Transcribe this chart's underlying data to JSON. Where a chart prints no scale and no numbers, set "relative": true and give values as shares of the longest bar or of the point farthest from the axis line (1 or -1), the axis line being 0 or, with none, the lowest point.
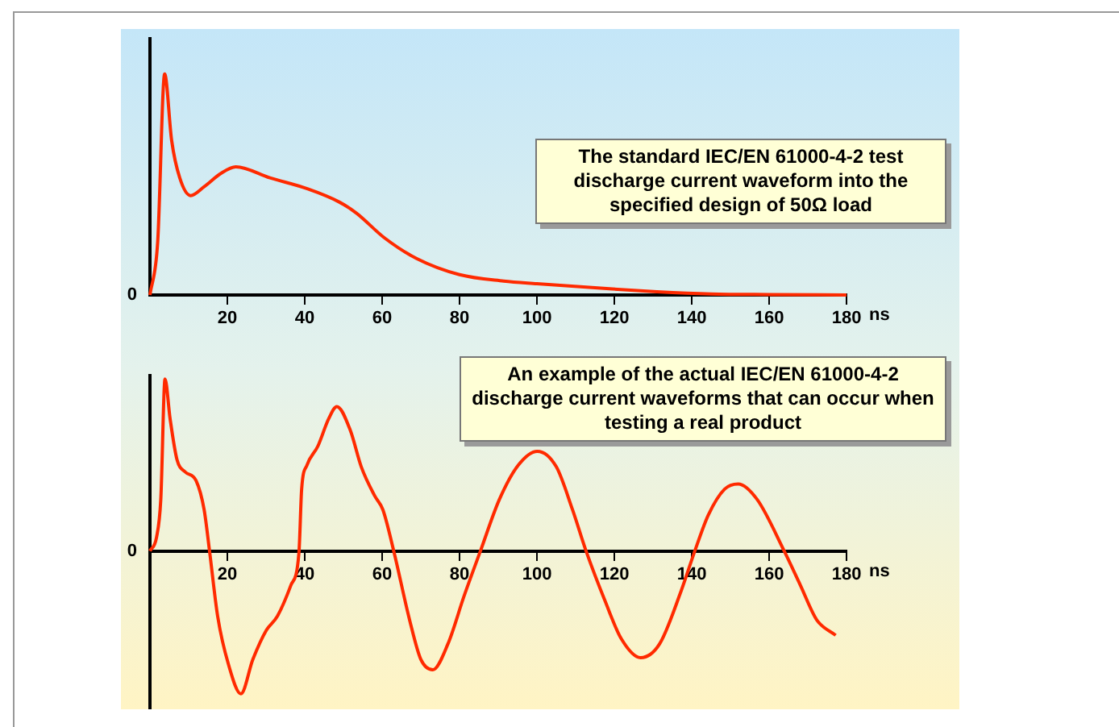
{
  "chart_data": [
    {
      "type": "line",
      "relative": true,
      "color": "#ff2a00",
      "xlabel": "ns",
      "xlim": [
        0,
        180
      ],
      "xticks": [
        20,
        40,
        60,
        80,
        100,
        120,
        140,
        160,
        180
      ],
      "grid": false,
      "legend": false,
      "marker": "none",
      "line_style": "solid",
      "annotations": [
        "The standard IEC/EN 61000-4-2 test discharge current waveform into the specified design of 50Ω load",
        {
          "text": "0",
          "x": 0,
          "y": 0
        }
      ],
      "x": [
        0,
        2,
        3.8,
        5.6,
        7.7,
        10.5,
        14,
        18.3,
        22.2,
        31,
        40.8,
        49,
        53.4,
        60.5,
        68.9,
        80,
        91.4,
        100,
        119.5,
        131,
        145,
        160,
        180
      ],
      "values": [
        0,
        0.24,
        1.0,
        0.7,
        0.53,
        0.45,
        0.49,
        0.55,
        0.58,
        0.53,
        0.48,
        0.42,
        0.37,
        0.26,
        0.165,
        0.092,
        0.063,
        0.051,
        0.027,
        0.015,
        0.005,
        0.002,
        0
      ]
    },
    {
      "type": "line",
      "relative": true,
      "color": "#ff2a00",
      "xlabel": "ns",
      "xlim": [
        0,
        180
      ],
      "xticks": [
        20,
        40,
        60,
        80,
        100,
        120,
        140,
        160,
        180
      ],
      "grid": false,
      "legend": false,
      "marker": "none",
      "line_style": "solid",
      "annotations": [
        "An example of the actual IEC/EN 61000-4-2 discharge current waveforms that can occur when testing a real product",
        {
          "text": "0",
          "x": 0,
          "y": 0
        }
      ],
      "x": [
        0,
        1.7,
        2.8,
        3.9,
        5.2,
        7,
        9.1,
        11.9,
        14,
        15.4,
        17.5,
        20.3,
        23.5,
        26.6,
        30.1,
        32.9,
        36.4,
        38.5,
        39.2,
        40.6,
        43.4,
        46.2,
        48.3,
        51.8,
        54.6,
        58.1,
        60.2,
        63,
        67.2,
        70,
        73.1,
        77,
        81.2,
        85.4,
        90.3,
        95.2,
        100.1,
        105,
        109.2,
        112.7,
        117.6,
        121.8,
        126.8,
        131.7,
        137.3,
        140.8,
        144.3,
        148.5,
        152,
        156.9,
        163.9,
        168.1,
        172.3,
        177.2
      ],
      "values": [
        0,
        0.08,
        0.3,
        1.0,
        0.77,
        0.53,
        0.46,
        0.41,
        0.24,
        0,
        -0.38,
        -0.66,
        -0.83,
        -0.63,
        -0.46,
        -0.38,
        -0.2,
        -0.01,
        0.36,
        0.5,
        0.61,
        0.77,
        0.84,
        0.7,
        0.49,
        0.32,
        0.24,
        0,
        -0.41,
        -0.63,
        -0.69,
        -0.54,
        -0.26,
        0,
        0.3,
        0.5,
        0.58,
        0.49,
        0.24,
        0,
        -0.29,
        -0.51,
        -0.62,
        -0.54,
        -0.23,
        0,
        0.21,
        0.36,
        0.39,
        0.3,
        0,
        -0.2,
        -0.4,
        -0.49
      ]
    }
  ]
}
